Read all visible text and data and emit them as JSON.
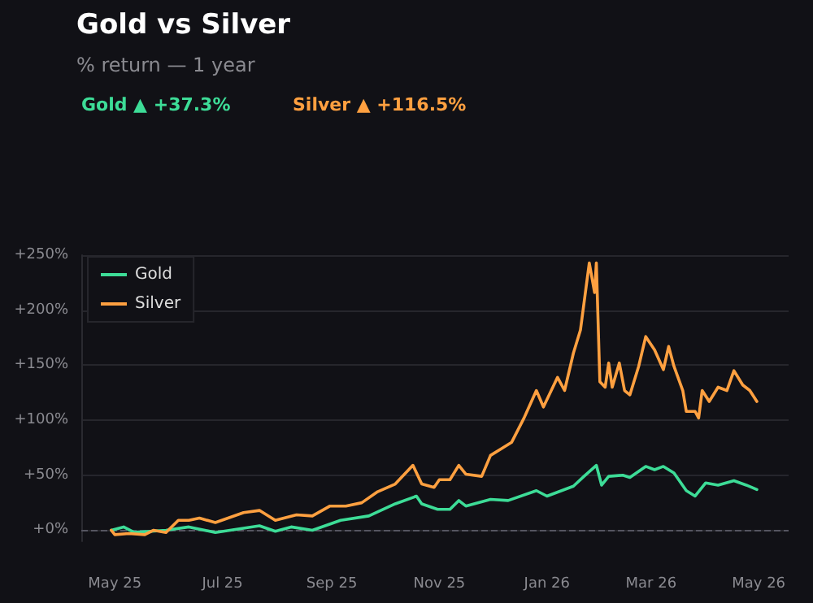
{
  "chart_data": {
    "type": "line",
    "title": "Gold vs Silver",
    "subtitle": "% return — 1 year",
    "annotations": [
      "Gold ▲ +37.3%",
      "Silver ▲ +116.5%"
    ],
    "xlim": [
      "2025-04-12",
      "2026-05-18"
    ],
    "xticks": [
      {
        "value": "2025-05-01",
        "label": "May 25"
      },
      {
        "value": "2025-07-01",
        "label": "Jul 25"
      },
      {
        "value": "2025-09-01",
        "label": "Sep 25"
      },
      {
        "value": "2025-11-01",
        "label": "Nov 25"
      },
      {
        "value": "2026-01-01",
        "label": "Jan 26"
      },
      {
        "value": "2026-03-01",
        "label": "Mar 26"
      },
      {
        "value": "2026-05-01",
        "label": "May 26"
      }
    ],
    "ylim": [
      -10,
      250
    ],
    "yticks": [
      {
        "value": 0,
        "label": "+0%"
      },
      {
        "value": 50,
        "label": "+50%"
      },
      {
        "value": 100,
        "label": "+100%"
      },
      {
        "value": 150,
        "label": "+150%"
      },
      {
        "value": 200,
        "label": "+200%"
      },
      {
        "value": 250,
        "label": "+250%"
      }
    ],
    "grid": "y",
    "legend": "top left",
    "marker": "none",
    "line_style": "solid",
    "ref_lines": [
      {
        "axis": "y",
        "value": 0,
        "color": "#555560",
        "line_style": "dashed"
      }
    ],
    "series": [
      {
        "name": "Gold",
        "color": "#3ddc97",
        "x": [
          "2025-04-29",
          "2025-05-06",
          "2025-05-12",
          "2025-05-30",
          "2025-06-12",
          "2025-06-27",
          "2025-07-22",
          "2025-07-31",
          "2025-08-09",
          "2025-08-21",
          "2025-09-06",
          "2025-09-22",
          "2025-10-07",
          "2025-10-19",
          "2025-10-22",
          "2025-10-31",
          "2025-11-07",
          "2025-11-12",
          "2025-11-16",
          "2025-11-30",
          "2025-12-10",
          "2025-12-26",
          "2026-01-01",
          "2026-01-16",
          "2026-01-22",
          "2026-01-29",
          "2026-02-01",
          "2026-02-05",
          "2026-02-13",
          "2026-02-17",
          "2026-02-26",
          "2026-03-03",
          "2026-03-08",
          "2026-03-14",
          "2026-03-21",
          "2026-03-26",
          "2026-04-01",
          "2026-04-08",
          "2026-04-17",
          "2026-04-24",
          "2026-04-30"
        ],
        "values": [
          0,
          3,
          -2,
          0,
          3,
          -2,
          4,
          -1,
          3,
          0,
          9,
          13,
          24,
          31,
          24,
          19,
          19,
          27,
          22,
          28,
          27,
          36,
          31,
          40,
          49,
          59,
          41,
          49,
          50,
          48,
          58,
          55,
          58,
          52,
          36,
          31,
          43,
          41,
          45,
          41,
          37
        ]
      },
      {
        "name": "Silver",
        "color": "#ffa040",
        "x": [
          "2025-04-29",
          "2025-05-01",
          "2025-05-09",
          "2025-05-18",
          "2025-05-23",
          "2025-05-30",
          "2025-06-06",
          "2025-06-12",
          "2025-06-18",
          "2025-06-27",
          "2025-07-13",
          "2025-07-22",
          "2025-07-31",
          "2025-08-12",
          "2025-08-21",
          "2025-08-31",
          "2025-09-09",
          "2025-09-18",
          "2025-09-27",
          "2025-10-07",
          "2025-10-17",
          "2025-10-22",
          "2025-10-29",
          "2025-11-01",
          "2025-11-07",
          "2025-11-12",
          "2025-11-16",
          "2025-11-25",
          "2025-11-30",
          "2025-12-07",
          "2025-12-12",
          "2025-12-19",
          "2025-12-26",
          "2025-12-30",
          "2026-01-07",
          "2026-01-11",
          "2026-01-16",
          "2026-01-20",
          "2026-01-25",
          "2026-01-28",
          "2026-01-29",
          "2026-01-31",
          "2026-02-03",
          "2026-02-05",
          "2026-02-07",
          "2026-02-11",
          "2026-02-14",
          "2026-02-17",
          "2026-02-22",
          "2026-02-26",
          "2026-03-03",
          "2026-03-08",
          "2026-03-11",
          "2026-03-14",
          "2026-03-19",
          "2026-03-21",
          "2026-03-26",
          "2026-03-28",
          "2026-03-30",
          "2026-04-03",
          "2026-04-08",
          "2026-04-13",
          "2026-04-17",
          "2026-04-22",
          "2026-04-26",
          "2026-04-30"
        ],
        "values": [
          0,
          -4,
          -3,
          -4,
          0,
          -2,
          9,
          9,
          11,
          7,
          16,
          18,
          9,
          14,
          13,
          22,
          22,
          25,
          35,
          42,
          59,
          42,
          39,
          46,
          46,
          59,
          51,
          49,
          68,
          75,
          80,
          102,
          127,
          112,
          139,
          127,
          161,
          182,
          243,
          216,
          243,
          135,
          130,
          152,
          130,
          152,
          127,
          123,
          149,
          176,
          164,
          146,
          167,
          149,
          127,
          108,
          108,
          102,
          127,
          117,
          130,
          127,
          145,
          132,
          127,
          117
        ]
      }
    ]
  }
}
